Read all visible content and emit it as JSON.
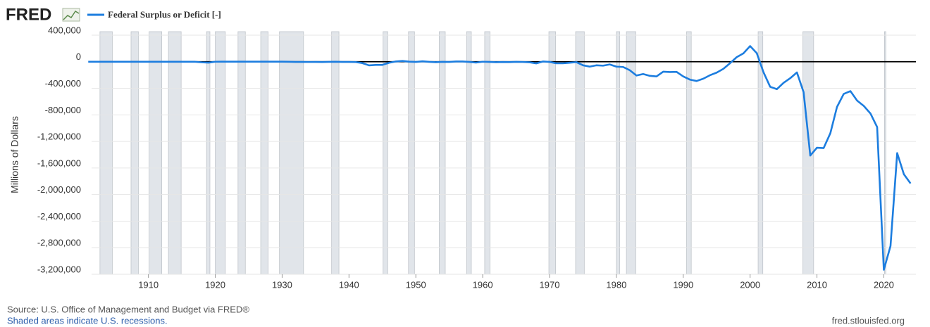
{
  "logo": "FRED",
  "chart_data": {
    "type": "line",
    "series": [
      {
        "name": "Federal Surplus or Deficit [-]",
        "color": "#1c7ddf",
        "values": [
          63,
          77,
          45,
          -43,
          -23,
          25,
          87,
          -57,
          -89,
          -18,
          11,
          3,
          0,
          0,
          -63,
          48,
          -853,
          -9032,
          -13363,
          291,
          509,
          736,
          713,
          963,
          717,
          865,
          1155,
          939,
          734,
          738,
          -462,
          -2735,
          -2602,
          -3586,
          -2803,
          -4304,
          -2193,
          -89,
          -2846,
          -2920,
          -4941,
          -20503,
          -54554,
          -47557,
          -47553,
          -15936,
          4018,
          11796,
          580,
          -3119,
          6102,
          -1519,
          -6493,
          -1154,
          -2993,
          3947,
          3412,
          -2769,
          -12849,
          301,
          -3335,
          -7146,
          -4756,
          -5915,
          -1411,
          -3698,
          -8643,
          -25161,
          3242,
          -2842,
          -23033,
          -23373,
          -14908,
          -6135,
          -53242,
          -73732,
          -53659,
          -59185,
          -40726,
          -73830,
          -78968,
          -127977,
          -207802,
          -185367,
          -212308,
          -221227,
          -149730,
          -155178,
          -152639,
          -221036,
          -269238,
          -290321,
          -255051,
          -203186,
          -163952,
          -107431,
          -21884,
          69270,
          125610,
          236241,
          128236,
          -157758,
          -377585,
          -412727,
          -318346,
          -248181,
          -160701,
          -458553,
          -1412686,
          -1294373,
          -1299599,
          -1076573,
          -679775,
          -484793,
          -441960,
          -584651,
          -665446,
          -779137,
          -983593,
          -3132460,
          -2775306,
          -1375905,
          -1693970,
          -1832818
        ]
      }
    ],
    "x": [
      1901,
      1902,
      1903,
      1904,
      1905,
      1906,
      1907,
      1908,
      1909,
      1910,
      1911,
      1912,
      1913,
      1914,
      1915,
      1916,
      1917,
      1918,
      1919,
      1920,
      1921,
      1922,
      1923,
      1924,
      1925,
      1926,
      1927,
      1928,
      1929,
      1930,
      1931,
      1932,
      1933,
      1934,
      1935,
      1936,
      1937,
      1938,
      1939,
      1940,
      1941,
      1942,
      1943,
      1944,
      1945,
      1946,
      1947,
      1948,
      1949,
      1950,
      1951,
      1952,
      1953,
      1954,
      1955,
      1956,
      1957,
      1958,
      1959,
      1960,
      1961,
      1962,
      1963,
      1964,
      1965,
      1966,
      1967,
      1968,
      1969,
      1970,
      1971,
      1972,
      1973,
      1974,
      1975,
      1976,
      1977,
      1978,
      1979,
      1980,
      1981,
      1982,
      1983,
      1984,
      1985,
      1986,
      1987,
      1988,
      1989,
      1990,
      1991,
      1992,
      1993,
      1994,
      1995,
      1996,
      1997,
      1998,
      1999,
      2000,
      2001,
      2002,
      2003,
      2004,
      2005,
      2006,
      2007,
      2008,
      2009,
      2010,
      2011,
      2012,
      2013,
      2014,
      2015,
      2016,
      2017,
      2018,
      2019,
      2020,
      2021,
      2022,
      2023,
      2024
    ],
    "xlim": [
      1901.5,
      2024.8
    ],
    "xticks": [
      1910,
      1920,
      1930,
      1940,
      1950,
      1960,
      1970,
      1980,
      1990,
      2000,
      2010,
      2020
    ],
    "ylim": [
      -3200000,
      400000
    ],
    "yticks": [
      {
        "value": 400000,
        "label": "400,000"
      },
      0,
      {
        "value": -400000,
        "label": "-400,000"
      },
      {
        "value": -800000,
        "label": "-800,000"
      },
      {
        "value": -1200000,
        "label": "-1,200,000"
      },
      {
        "value": -1600000,
        "label": "-1,600,000"
      },
      {
        "value": -2000000,
        "label": "-2,000,000"
      },
      {
        "value": -2400000,
        "label": "-2,400,000"
      },
      {
        "value": -2800000,
        "label": "-2,800,000"
      },
      {
        "value": -3200000,
        "label": "-3,200,000"
      }
    ],
    "ylabel": "Millions of Dollars",
    "grid": true,
    "zero_line": true,
    "recessions": [
      [
        1902.75,
        1904.6
      ],
      [
        1907.4,
        1908.5
      ],
      [
        1910.1,
        1912.0
      ],
      [
        1913.0,
        1914.9
      ],
      [
        1918.7,
        1919.2
      ],
      [
        1920.0,
        1921.5
      ],
      [
        1923.4,
        1924.5
      ],
      [
        1926.8,
        1927.9
      ],
      [
        1929.6,
        1933.2
      ],
      [
        1937.4,
        1938.5
      ],
      [
        1945.1,
        1945.8
      ],
      [
        1948.9,
        1949.8
      ],
      [
        1953.5,
        1954.4
      ],
      [
        1957.6,
        1958.3
      ],
      [
        1960.3,
        1961.1
      ],
      [
        1969.9,
        1970.9
      ],
      [
        1973.9,
        1975.2
      ],
      [
        1980.0,
        1980.5
      ],
      [
        1981.5,
        1982.9
      ],
      [
        1990.5,
        1991.2
      ],
      [
        2001.2,
        2001.9
      ],
      [
        2007.9,
        2009.5
      ],
      [
        2020.1,
        2020.3
      ]
    ],
    "source": "Source: U.S. Office of Management and Budget via FRED®",
    "note": "Shaded areas indicate U.S. recessions.",
    "url": "fred.stlouisfed.org"
  }
}
